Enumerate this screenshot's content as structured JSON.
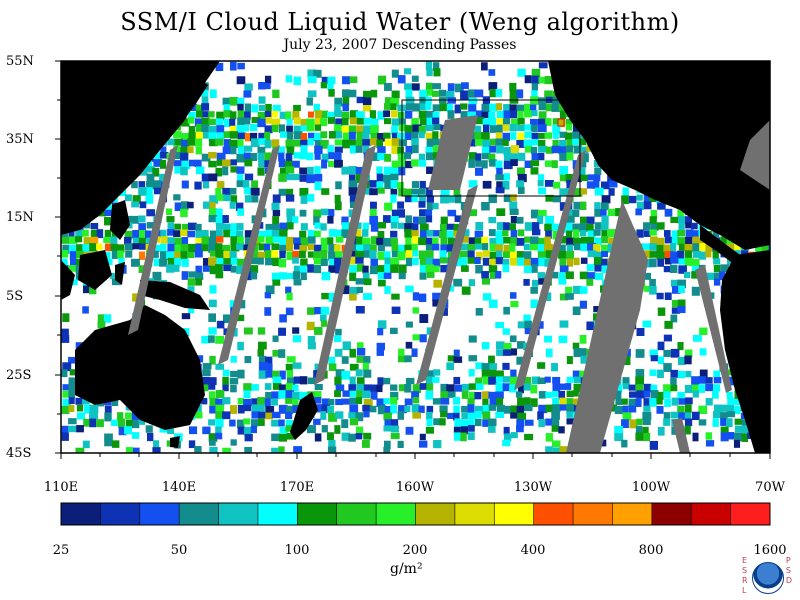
{
  "title": "SSM/I Cloud Liquid Water (Weng algorithm)",
  "subtitle": "July 23, 2007  Descending Passes",
  "lat_labels": [
    "55N",
    "35N",
    "15N",
    "5S",
    "25S",
    "45S"
  ],
  "lon_labels": [
    "110E",
    "140E",
    "170E",
    "160W",
    "130W",
    "100W",
    "70W"
  ],
  "colorbar": {
    "colors": [
      "#0a1e7a",
      "#0d32b4",
      "#1450f0",
      "#128c8c",
      "#10c3c3",
      "#00ffff",
      "#0a960a",
      "#20c820",
      "#28f028",
      "#b4b400",
      "#dcdc00",
      "#ffff00",
      "#ff5000",
      "#ff7800",
      "#ffa000",
      "#8c0000",
      "#c80000",
      "#ff1e1e"
    ],
    "labels": [
      "25",
      "50",
      "100",
      "200",
      "400",
      "800",
      "1600"
    ]
  },
  "units": "g/m²",
  "logo": {
    "left_letters": [
      "E",
      "S",
      "R",
      "L"
    ],
    "right_letters": [
      "P",
      "S",
      "D"
    ],
    "name": "NOAA"
  },
  "map": {
    "land_color": "#000000",
    "nodata_color": "#707070",
    "clear_color": "#ffffff",
    "box_color": "#000000",
    "marker_color": "#ff0000"
  }
}
